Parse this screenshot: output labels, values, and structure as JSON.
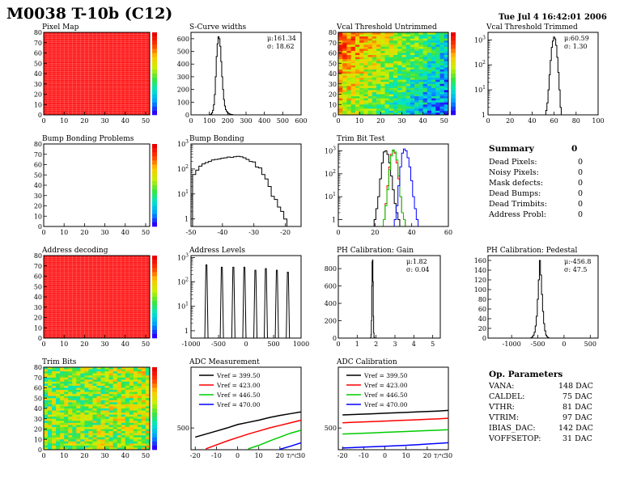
{
  "header": {
    "title": "M0038 T-10b (C12)",
    "timestamp": "Tue Jul  4 16:42:01 2006"
  },
  "summary": {
    "title": "Summary",
    "total": "0",
    "items": [
      {
        "label": "Dead Pixels:",
        "value": "0"
      },
      {
        "label": "Noisy Pixels:",
        "value": "0"
      },
      {
        "label": "Mask defects:",
        "value": "0"
      },
      {
        "label": "Dead Bumps:",
        "value": "0"
      },
      {
        "label": "Dead Trimbits:",
        "value": "0"
      },
      {
        "label": "Address Probl:",
        "value": "0"
      }
    ]
  },
  "op_parameters": {
    "title": "Op. Parameters",
    "items": [
      {
        "label": "VANA:",
        "value": "148 DAC"
      },
      {
        "label": "CALDEL:",
        "value": "75 DAC"
      },
      {
        "label": "VTHR:",
        "value": "81 DAC"
      },
      {
        "label": "VTRIM:",
        "value": "97 DAC"
      },
      {
        "label": "IBIAS_DAC:",
        "value": "142 DAC"
      },
      {
        "label": "VOFFSETOP:",
        "value": "31 DAC"
      }
    ]
  },
  "chart_data": [
    {
      "id": "pixel-map",
      "type": "heatmap",
      "title": "Pixel Map",
      "xlim": [
        0,
        52
      ],
      "ylim": [
        0,
        80
      ],
      "xticks": [
        "0",
        "10",
        "20",
        "30",
        "40",
        "50"
      ],
      "yticks": [
        "0",
        "10",
        "20",
        "30",
        "40",
        "50",
        "60",
        "70",
        "80"
      ],
      "pattern": "uniform",
      "uniform_color": "#ff1a1a",
      "grid": true,
      "colorbar": true
    },
    {
      "id": "scurve-widths",
      "type": "histogram",
      "title": "S-Curve widths",
      "xlim": [
        0,
        600
      ],
      "ylim": [
        0,
        650
      ],
      "xticks": [
        "0",
        "100",
        "200",
        "300",
        "400",
        "500",
        "600"
      ],
      "yticks": [
        "0",
        "100",
        "200",
        "300",
        "400",
        "500",
        "600"
      ],
      "x": [
        105,
        110,
        115,
        120,
        125,
        130,
        135,
        140,
        145,
        150,
        155,
        160,
        165,
        170,
        175,
        180,
        185,
        190,
        195,
        200,
        205,
        210,
        215,
        220,
        225,
        230
      ],
      "values": [
        2,
        6,
        15,
        35,
        80,
        160,
        300,
        460,
        560,
        615,
        600,
        540,
        420,
        300,
        200,
        120,
        70,
        42,
        28,
        18,
        12,
        8,
        5,
        3,
        2,
        1
      ],
      "stats": {
        "mean": "μ:161.34",
        "sigma": "σ: 18.62"
      }
    },
    {
      "id": "vcal-untrimmed",
      "type": "heatmap",
      "title": "Vcal Threshold Untrimmed",
      "xlim": [
        0,
        52
      ],
      "ylim": [
        0,
        80
      ],
      "xticks": [
        "0",
        "10",
        "20",
        "30",
        "40",
        "50"
      ],
      "yticks": [
        "0",
        "10",
        "20",
        "30",
        "40",
        "50",
        "60",
        "70",
        "80"
      ],
      "pattern": "gradient",
      "colorbar": true
    },
    {
      "id": "vcal-trimmed",
      "type": "histogram",
      "title": "Vcal Threshold Trimmed",
      "log": true,
      "xlim": [
        0,
        100
      ],
      "ylim": [
        1,
        2000
      ],
      "xticks": [
        "0",
        "20",
        "40",
        "60",
        "80",
        "100"
      ],
      "x": [
        52,
        53,
        54,
        55,
        56,
        57,
        58,
        59,
        60,
        61,
        62,
        63,
        64,
        65,
        66,
        67,
        68
      ],
      "values": [
        1,
        1.5,
        3,
        10,
        40,
        150,
        500,
        900,
        1300,
        1100,
        600,
        200,
        50,
        10,
        2,
        1,
        1
      ],
      "stats": {
        "mean": "μ:60.59",
        "sigma": "σ: 1.30"
      }
    },
    {
      "id": "bump-problems",
      "type": "heatmap",
      "title": "Bump Bonding Problems",
      "xlim": [
        0,
        52
      ],
      "ylim": [
        0,
        80
      ],
      "xticks": [
        "0",
        "10",
        "20",
        "30",
        "40",
        "50"
      ],
      "yticks": [
        "0",
        "10",
        "20",
        "30",
        "40",
        "50",
        "60",
        "70",
        "80"
      ],
      "pattern": "empty",
      "colorbar": true
    },
    {
      "id": "bump-bonding",
      "type": "histogram",
      "title": "Bump Bonding",
      "log": true,
      "xlim": [
        -50,
        -15
      ],
      "ylim": [
        0.5,
        1000
      ],
      "xticks": [
        "-50",
        "-40",
        "-30",
        "-20"
      ],
      "x": [
        -49,
        -48,
        -47,
        -46,
        -45,
        -44,
        -43,
        -42,
        -41,
        -40,
        -39,
        -38,
        -37,
        -36,
        -35,
        -34,
        -33,
        -32,
        -31,
        -30,
        -29,
        -28,
        -27,
        -26,
        -25,
        -24,
        -23,
        -22,
        -21,
        -20,
        -19
      ],
      "values": [
        60,
        90,
        130,
        160,
        180,
        200,
        230,
        240,
        250,
        270,
        280,
        300,
        290,
        310,
        320,
        310,
        280,
        240,
        200,
        190,
        120,
        110,
        60,
        40,
        20,
        8,
        6,
        3,
        2,
        1,
        0.5
      ]
    },
    {
      "id": "trim-bit-test",
      "type": "histogram",
      "title": "Trim Bit Test",
      "log": true,
      "xlim": [
        0,
        60
      ],
      "ylim": [
        0.5,
        2000
      ],
      "xticks": [
        "0",
        "20",
        "40",
        "60"
      ],
      "series": [
        {
          "color": "#000000",
          "x": [
            20,
            21,
            22,
            23,
            24,
            25,
            26,
            27,
            28,
            29,
            30,
            31,
            32,
            33,
            34
          ],
          "values": [
            1,
            3,
            10,
            60,
            300,
            900,
            1000,
            700,
            300,
            80,
            20,
            5,
            2,
            1,
            0.5
          ]
        },
        {
          "color": "#ff0000",
          "x": [
            25,
            26,
            27,
            28,
            29,
            30,
            31,
            32,
            33,
            34,
            35,
            36
          ],
          "values": [
            1,
            5,
            30,
            200,
            700,
            1000,
            800,
            300,
            60,
            10,
            2,
            1
          ]
        },
        {
          "color": "#00cc00",
          "x": [
            25,
            26,
            27,
            28,
            29,
            30,
            31,
            32,
            33,
            34,
            35,
            36
          ],
          "values": [
            1,
            4,
            20,
            150,
            600,
            1100,
            900,
            400,
            80,
            10,
            2,
            1
          ]
        },
        {
          "color": "#0000ff",
          "x": [
            31,
            32,
            33,
            34,
            35,
            36,
            37,
            38,
            39,
            40,
            41,
            42,
            43
          ],
          "values": [
            1,
            4,
            30,
            200,
            800,
            1200,
            1000,
            500,
            200,
            50,
            10,
            3,
            1
          ]
        }
      ]
    },
    {
      "id": "address-decoding",
      "type": "heatmap",
      "title": "Address decoding",
      "xlim": [
        0,
        52
      ],
      "ylim": [
        0,
        80
      ],
      "xticks": [
        "0",
        "10",
        "20",
        "30",
        "40",
        "50"
      ],
      "yticks": [
        "0",
        "10",
        "20",
        "30",
        "40",
        "50",
        "60",
        "70",
        "80"
      ],
      "pattern": "uniform",
      "uniform_color": "#ff1a1a",
      "grid": true,
      "colorbar": true
    },
    {
      "id": "address-levels",
      "type": "histogram",
      "title": "Address Levels",
      "log": true,
      "xlim": [
        -1000,
        1000
      ],
      "ylim": [
        0.5,
        1200
      ],
      "xticks": [
        "-1000",
        "-500",
        "0",
        "500",
        "1000"
      ],
      "peaks": [
        {
          "center": -720,
          "height": 500
        },
        {
          "center": -440,
          "height": 400
        },
        {
          "center": -230,
          "height": 400
        },
        {
          "center": -30,
          "height": 400
        },
        {
          "center": 170,
          "height": 300
        },
        {
          "center": 360,
          "height": 350
        },
        {
          "center": 560,
          "height": 300
        },
        {
          "center": 760,
          "height": 250
        }
      ]
    },
    {
      "id": "ph-gain",
      "type": "histogram",
      "title": "PH Calibration: Gain",
      "xlim": [
        0,
        5.4
      ],
      "ylim": [
        0,
        950
      ],
      "xticks": [
        "0",
        "1",
        "2",
        "3",
        "4",
        "5"
      ],
      "yticks": [
        "0",
        "200",
        "400",
        "600",
        "800"
      ],
      "x": [
        1.7,
        1.72,
        1.74,
        1.76,
        1.78,
        1.8,
        1.82,
        1.84,
        1.86,
        1.88,
        1.9,
        1.92,
        1.94
      ],
      "values": [
        1,
        5,
        40,
        200,
        600,
        880,
        900,
        650,
        250,
        60,
        10,
        2,
        1
      ],
      "stats": {
        "mean": "μ:1.82",
        "sigma": "σ: 0.04"
      }
    },
    {
      "id": "ph-pedestal",
      "type": "histogram",
      "title": "PH Calibration: Pedestal",
      "xlim": [
        -1450,
        650
      ],
      "ylim": [
        0,
        170
      ],
      "xticks": [
        "-1000",
        "-500",
        "0",
        "500"
      ],
      "yticks": [
        "0",
        "20",
        "40",
        "60",
        "80",
        "100",
        "120",
        "140",
        "160"
      ],
      "x": [
        -620,
        -600,
        -580,
        -560,
        -540,
        -520,
        -500,
        -480,
        -460,
        -440,
        -420,
        -400,
        -380,
        -360,
        -340,
        -320,
        -300
      ],
      "values": [
        1,
        3,
        6,
        12,
        25,
        45,
        80,
        120,
        160,
        130,
        90,
        55,
        30,
        15,
        6,
        3,
        1
      ],
      "stats": {
        "mean": "μ:-456.8",
        "sigma": "σ: 47.5"
      }
    },
    {
      "id": "trim-bits",
      "type": "heatmap",
      "title": "Trim Bits",
      "xlim": [
        0,
        52
      ],
      "ylim": [
        0,
        80
      ],
      "xticks": [
        "0",
        "10",
        "20",
        "30",
        "40",
        "50"
      ],
      "yticks": [
        "0",
        "10",
        "20",
        "30",
        "40",
        "50",
        "60",
        "70",
        "80"
      ],
      "pattern": "noise",
      "colorbar": true
    },
    {
      "id": "adc-measurement",
      "type": "line",
      "title": "ADC Measurement",
      "xlim": [
        -22,
        30
      ],
      "ylim": [
        0,
        1900
      ],
      "xticks": [
        "-20",
        "-10",
        "0",
        "10",
        "20",
        "30"
      ],
      "yticks": [
        "500"
      ],
      "xlabel": "T/°C",
      "series": [
        {
          "name": "Vref = 399.50",
          "color": "#000000",
          "x": [
            -20,
            -15,
            -10,
            -5,
            0,
            5,
            10,
            15,
            20,
            25,
            30
          ],
          "values": [
            290,
            360,
            430,
            500,
            580,
            630,
            680,
            740,
            790,
            830,
            870
          ]
        },
        {
          "name": "Vref = 423.00",
          "color": "#ff0000",
          "x": [
            -15,
            -10,
            -5,
            0,
            5,
            10,
            15,
            20,
            25,
            30
          ],
          "values": [
            20,
            110,
            200,
            280,
            360,
            430,
            500,
            560,
            620,
            680
          ]
        },
        {
          "name": "Vref = 446.50",
          "color": "#00cc00",
          "x": [
            5,
            10,
            15,
            20,
            25,
            30
          ],
          "values": [
            20,
            100,
            200,
            290,
            380,
            450
          ]
        },
        {
          "name": "Vref = 470.00",
          "color": "#0000ff",
          "x": [
            20,
            25,
            30
          ],
          "values": [
            10,
            80,
            160
          ]
        }
      ]
    },
    {
      "id": "adc-calibration",
      "type": "line",
      "title": "ADC Calibration",
      "xlim": [
        -22,
        30
      ],
      "ylim": [
        0,
        1900
      ],
      "xticks": [
        "-20",
        "-10",
        "0",
        "10",
        "20",
        "30"
      ],
      "yticks": [
        "500"
      ],
      "xlabel": "T/°C",
      "series": [
        {
          "name": "Vref = 399.50",
          "color": "#000000",
          "x": [
            -20,
            -15,
            -10,
            -5,
            0,
            5,
            10,
            15,
            20,
            25,
            30
          ],
          "values": [
            800,
            810,
            820,
            830,
            840,
            850,
            860,
            870,
            880,
            890,
            905
          ]
        },
        {
          "name": "Vref = 423.00",
          "color": "#ff0000",
          "x": [
            -20,
            -15,
            -10,
            -5,
            0,
            5,
            10,
            15,
            20,
            25,
            30
          ],
          "values": [
            620,
            630,
            640,
            650,
            660,
            670,
            680,
            690,
            700,
            710,
            725
          ]
        },
        {
          "name": "Vref = 446.50",
          "color": "#00cc00",
          "x": [
            -20,
            -15,
            -10,
            -5,
            0,
            5,
            10,
            15,
            20,
            25,
            30
          ],
          "values": [
            360,
            370,
            380,
            390,
            400,
            410,
            420,
            430,
            440,
            450,
            460
          ]
        },
        {
          "name": "Vref = 470.00",
          "color": "#0000ff",
          "x": [
            -20,
            -15,
            -10,
            -5,
            0,
            5,
            10,
            15,
            20,
            25,
            30
          ],
          "values": [
            40,
            50,
            60,
            70,
            80,
            90,
            100,
            115,
            130,
            145,
            160
          ]
        }
      ]
    }
  ]
}
